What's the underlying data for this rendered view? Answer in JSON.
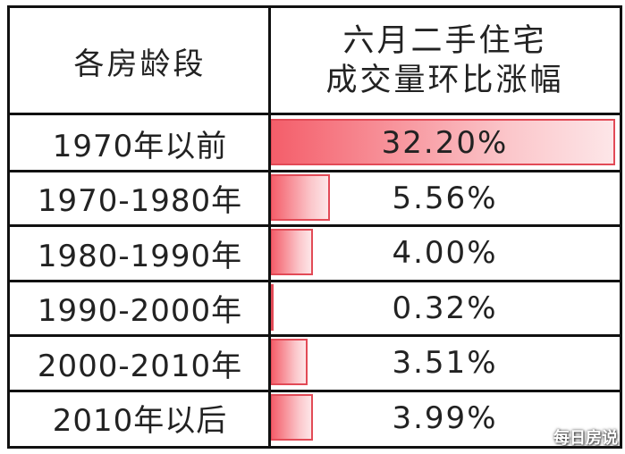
{
  "chart_data": {
    "type": "table",
    "columns": [
      "各房龄段",
      "六月二手住宅成交量环比涨幅"
    ],
    "header_right_lines": [
      "六月二手住宅",
      "成交量环比涨幅"
    ],
    "categories": [
      "1970年以前",
      "1970-1980年",
      "1980-1990年",
      "1990-2000年",
      "2000-2010年",
      "2010年以后"
    ],
    "values": [
      32.2,
      5.56,
      4.0,
      0.32,
      3.51,
      3.99
    ],
    "value_labels": [
      "32.20%",
      "5.56%",
      "4.00%",
      "0.32%",
      "3.51%",
      "3.99%"
    ],
    "max_value": 32.2,
    "bar_color": "#f45e6a"
  },
  "watermark": "每日房说"
}
